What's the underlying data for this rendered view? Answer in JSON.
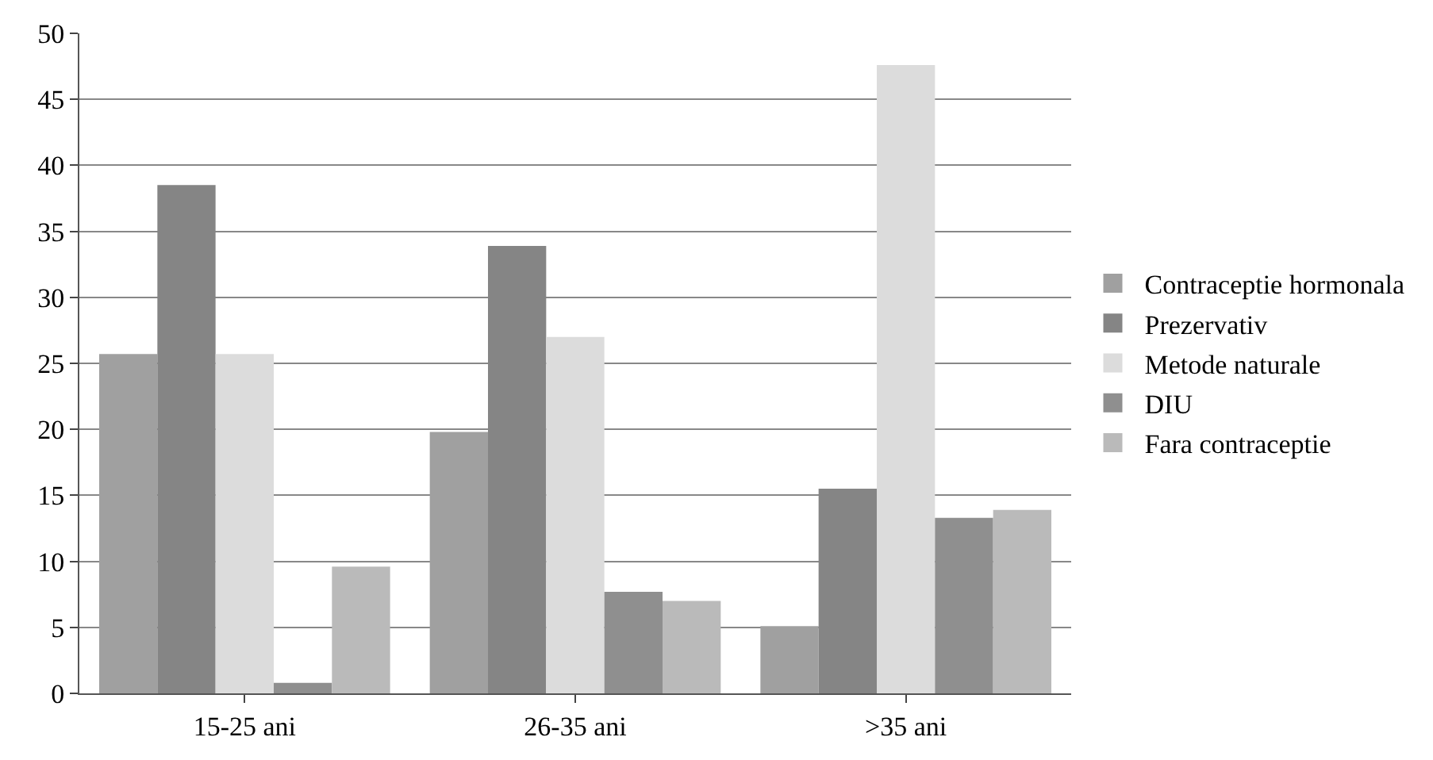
{
  "chart_data": {
    "type": "bar",
    "categories": [
      "15-25 ani",
      "26-35 ani",
      ">35 ani"
    ],
    "series": [
      {
        "name": "Contraceptie hormonala",
        "color": "#a0a0a0",
        "values": [
          25.7,
          19.8,
          5.1
        ]
      },
      {
        "name": "Prezervativ",
        "color": "#858585",
        "values": [
          38.5,
          33.9,
          15.5
        ]
      },
      {
        "name": "Metode naturale",
        "color": "#dcdcdc",
        "values": [
          25.7,
          27,
          47.6
        ]
      },
      {
        "name": "DIU",
        "color": "#8f8f8f",
        "values": [
          0.8,
          7.7,
          13.3
        ]
      },
      {
        "name": "Fara contraceptie",
        "color": "#bababa",
        "values": [
          9.6,
          7.0,
          13.9
        ]
      }
    ],
    "ylim": [
      0,
      50
    ],
    "yticks": [
      0,
      5,
      10,
      15,
      20,
      25,
      30,
      35,
      40,
      45,
      50
    ],
    "grid": "y",
    "legend": "right"
  }
}
